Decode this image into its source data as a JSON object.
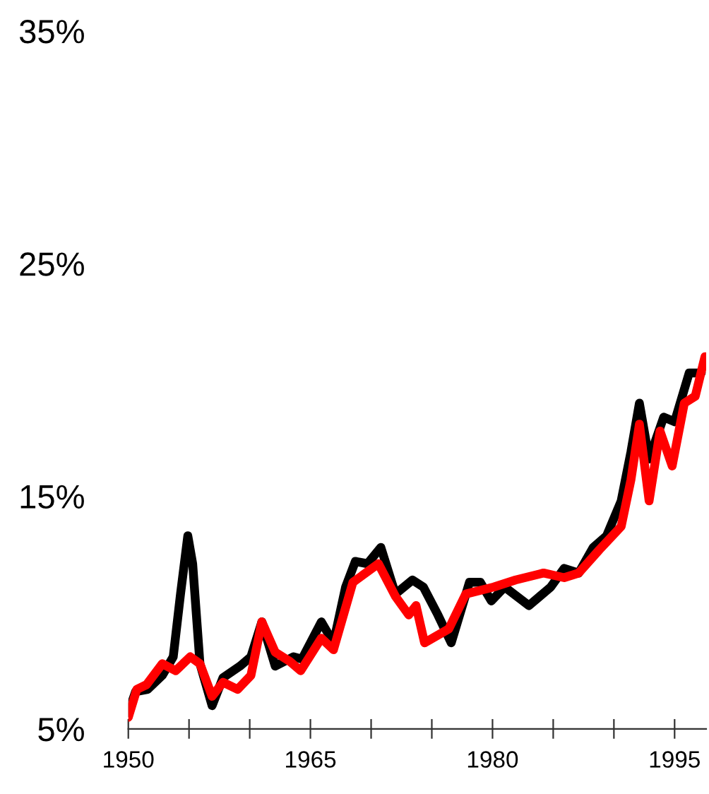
{
  "chart_data": {
    "type": "line",
    "xlim": [
      1950,
      1997.6
    ],
    "ylim": [
      5,
      35
    ],
    "xticks": [
      1950,
      {
        "value": 1955,
        "label": null
      },
      {
        "value": 1960,
        "label": null
      },
      1965,
      {
        "value": 1970,
        "label": null
      },
      {
        "value": 1975,
        "label": null
      },
      1980,
      {
        "value": 1985,
        "label": null
      },
      {
        "value": 1990,
        "label": null
      },
      1995
    ],
    "yticks": [
      {
        "value": 5,
        "label": "5%"
      },
      {
        "value": 15,
        "label": "15%"
      },
      {
        "value": 25,
        "label": "25%"
      },
      {
        "value": 35,
        "label": "35%"
      }
    ],
    "grid": false,
    "legend": false,
    "marker": "none",
    "line_style": "solid",
    "series": [
      {
        "color": "#000000",
        "x": [
          1950,
          1950.6,
          1951.6,
          1952.8,
          1953.7,
          1954.3,
          1954.9,
          1955.3,
          1955.9,
          1956.9,
          1957.8,
          1959.2,
          1960.1,
          1961.0,
          1962.1,
          1963.6,
          1964.3,
          1965.9,
          1966.9,
          1967.9,
          1968.7,
          1969.7,
          1970.8,
          1972.0,
          1973.4,
          1974.3,
          1975.5,
          1976.6,
          1978.1,
          1979.0,
          1979.9,
          1981.0,
          1983.0,
          1984.8,
          1985.9,
          1987.1,
          1988.3,
          1989.4,
          1990.6,
          1991.4,
          1992.1,
          1992.9,
          1994.1,
          1995.0,
          1996.2,
          1997.2
        ],
        "values": [
          5.7,
          6.6,
          6.7,
          7.3,
          8.1,
          10.8,
          13.3,
          12.1,
          7.8,
          6.0,
          7.2,
          7.7,
          8.1,
          9.6,
          7.7,
          8.1,
          8.0,
          9.6,
          8.7,
          11.1,
          12.2,
          12.1,
          12.8,
          10.8,
          11.4,
          11.1,
          9.9,
          8.7,
          11.3,
          11.3,
          10.5,
          11.1,
          10.3,
          11.1,
          11.9,
          11.7,
          12.8,
          13.3,
          14.8,
          16.9,
          19.0,
          16.6,
          18.4,
          18.2,
          20.3,
          20.3
        ]
      },
      {
        "color": "#ff0000",
        "x": [
          1950,
          1950.7,
          1951.5,
          1952.8,
          1953.9,
          1955.1,
          1955.9,
          1956.9,
          1957.8,
          1959.0,
          1960.1,
          1961.0,
          1962.1,
          1963.3,
          1964.2,
          1965.9,
          1966.9,
          1968.5,
          1970.6,
          1972.0,
          1973.1,
          1973.7,
          1974.4,
          1976.4,
          1977.8,
          1980.1,
          1981.9,
          1984.2,
          1985.9,
          1987.1,
          1988.8,
          1990.6,
          1991.4,
          1992.1,
          1992.9,
          1993.8,
          1994.8,
          1995.8,
          1996.7,
          1997.5
        ],
        "values": [
          5.5,
          6.7,
          6.9,
          7.8,
          7.5,
          8.1,
          7.8,
          6.4,
          7.0,
          6.7,
          7.3,
          9.6,
          8.3,
          7.9,
          7.5,
          8.9,
          8.4,
          11.3,
          12.1,
          10.7,
          9.9,
          10.3,
          8.7,
          9.3,
          10.8,
          11.1,
          11.4,
          11.7,
          11.5,
          11.7,
          12.7,
          13.7,
          15.7,
          18.1,
          14.8,
          17.8,
          16.3,
          19.0,
          19.3,
          21.0
        ]
      }
    ]
  }
}
